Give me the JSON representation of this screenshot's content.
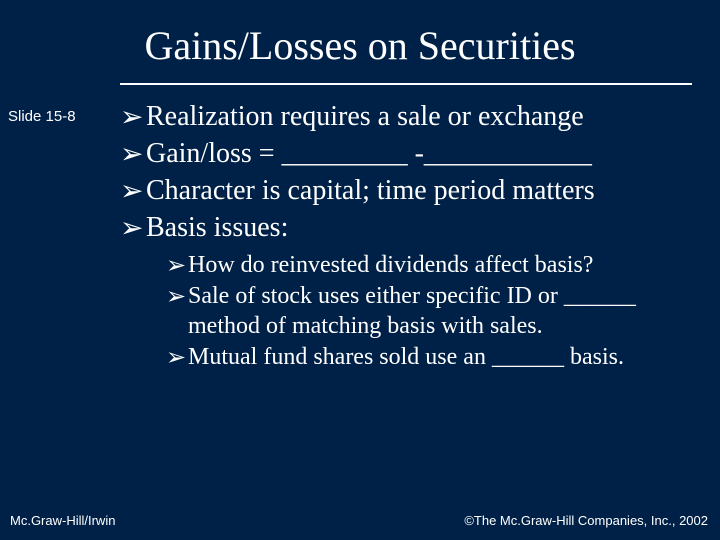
{
  "colors": {
    "background": "#002147",
    "text": "#ffffff",
    "divider": "#ffffff"
  },
  "title": "Gains/Losses on Securities",
  "slide_label": "Slide 15-8",
  "bullet_glyph": "➢",
  "main_items": [
    "Realization requires a sale or exchange",
    "Gain/loss = _________ -____________",
    "Character is capital; time period matters",
    "Basis issues:"
  ],
  "sub_items": [
    "How do reinvested dividends affect basis?",
    "Sale of stock uses either specific ID or ______ method of matching basis with sales.",
    "Mutual fund shares sold use an ______ basis."
  ],
  "footer_left": "Mc.Graw-Hill/Irwin",
  "footer_right": "©The Mc.Graw-Hill Companies, Inc., 2002",
  "typography": {
    "title_fontsize": 40,
    "main_fontsize": 28,
    "sub_fontsize": 24,
    "label_fontsize": 15,
    "footer_fontsize": 13,
    "title_font": "Palatino",
    "body_font": "Palatino",
    "label_font": "Arial"
  }
}
